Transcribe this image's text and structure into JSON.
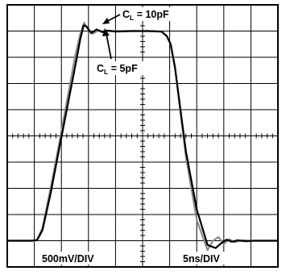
{
  "chart_data": {
    "type": "line",
    "title": "",
    "xlabel": "",
    "ylabel": "",
    "x_unit": "ns",
    "y_unit": "mV",
    "xlim": [
      0,
      50
    ],
    "ylim": [
      -2500,
      2500
    ],
    "grid": true,
    "grid_divisions": {
      "x": 10,
      "y": 10
    },
    "scale_labels": {
      "vertical": "500mV/DIV",
      "horizontal": "5ns/DIV"
    },
    "series": [
      {
        "name": "CL = 10pF",
        "x": [
          0,
          4.5,
          5.5,
          6.5,
          8.0,
          9.5,
          11.0,
          12.5,
          13.5,
          14.1,
          14.7,
          15.5,
          16.5,
          17.5,
          18.5,
          20.0,
          23.0,
          26.0,
          28.5,
          29.5,
          30.2,
          31.0,
          32.0,
          33.0,
          35.0,
          37.0,
          38.5,
          39.5,
          40.5,
          41.5,
          42.5,
          44.0,
          45.5,
          50.0
        ],
        "y": [
          -2000,
          -2000,
          -1990,
          -1800,
          -1100,
          -300,
          500,
          1300,
          1850,
          2110,
          2080,
          1960,
          2030,
          1980,
          2010,
          1990,
          2000,
          2000,
          1990,
          1900,
          1750,
          1300,
          500,
          -300,
          -1400,
          -2080,
          -2140,
          -2050,
          -1980,
          -2020,
          -1990,
          -2010,
          -2000,
          -2000
        ]
      },
      {
        "name": "CL = 5pF",
        "x": [
          0,
          4.5,
          5.5,
          6.5,
          8.0,
          9.5,
          11.0,
          12.5,
          13.5,
          14.2,
          14.9,
          15.8,
          16.8,
          18.0,
          20.0,
          23.0,
          26.0,
          28.5,
          29.5,
          30.2,
          31.0,
          32.0,
          33.0,
          35.0,
          37.0,
          38.0,
          39.0,
          40.0,
          41.0,
          42.0,
          43.5,
          45.0,
          50.0
        ],
        "y": [
          -2000,
          -2000,
          -1985,
          -1750,
          -1000,
          -200,
          650,
          1500,
          1950,
          2160,
          2040,
          1950,
          2010,
          1995,
          2000,
          2000,
          2000,
          1990,
          1900,
          1740,
          1280,
          450,
          -400,
          -1600,
          -2180,
          -2000,
          -1930,
          -2060,
          -1970,
          -2030,
          -1990,
          -2000,
          -2000
        ]
      }
    ],
    "annotations": [
      {
        "text": "C",
        "subscript": "L",
        "suffix": " = 10pF"
      },
      {
        "text": "C",
        "subscript": "L",
        "suffix": " = 5pF"
      }
    ]
  }
}
